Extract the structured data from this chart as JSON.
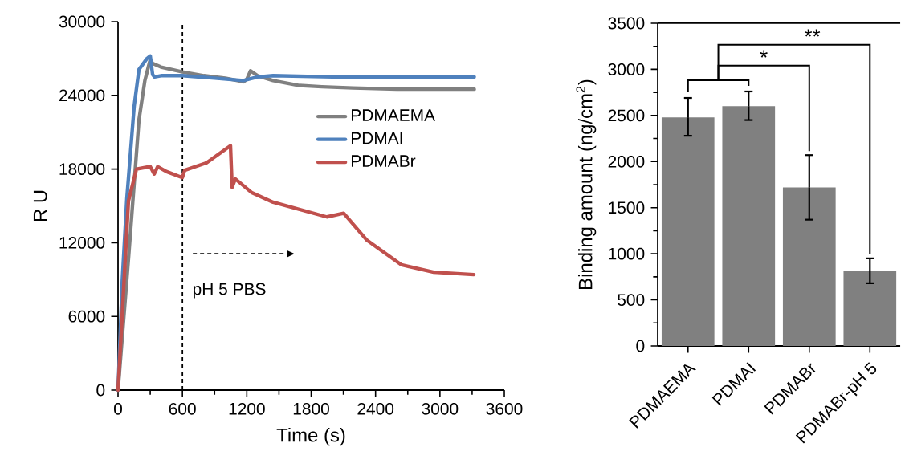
{
  "chart_data": [
    {
      "type": "line",
      "xlabel": "Time (s)",
      "ylabel": "R U",
      "xlim": [
        0,
        3600
      ],
      "xticks": [
        0,
        600,
        1200,
        1800,
        2400,
        3000,
        3600
      ],
      "ylim": [
        0,
        30000
      ],
      "yticks": [
        0,
        6000,
        12000,
        18000,
        24000,
        30000
      ],
      "legend": "right",
      "ref_lines": [
        {
          "axis": "x",
          "value": 600,
          "color": "#000000",
          "line_style": "dashed"
        }
      ],
      "annotations": [
        "pH 5 PBS"
      ],
      "series": [
        {
          "name": "PDMAEMA",
          "color": "#808080",
          "x": [
            0,
            100,
            195,
            250,
            300,
            322,
            400,
            600,
            800,
            1000,
            1168,
            1200,
            1235,
            1300,
            1445,
            1690,
            1900,
            2190,
            2600,
            3000,
            3320
          ],
          "values": [
            0,
            11000,
            22000,
            25200,
            26900,
            26600,
            26300,
            25900,
            25600,
            25400,
            25100,
            25300,
            26000,
            25600,
            25200,
            24800,
            24700,
            24600,
            24500,
            24500,
            24500
          ]
        },
        {
          "name": "PDMAI",
          "color": "#4f81bd",
          "x": [
            0,
            40,
            82,
            150,
            195,
            270,
            300,
            322,
            340,
            400,
            600,
            900,
            1168,
            1300,
            1445,
            2000,
            2600,
            3320
          ],
          "values": [
            0,
            9000,
            15600,
            23100,
            26100,
            27000,
            27200,
            25700,
            25500,
            25600,
            25600,
            25400,
            25200,
            25500,
            25600,
            25500,
            25500,
            25500
          ]
        },
        {
          "name": "PDMABr",
          "color": "#c0504d",
          "x": [
            0,
            97,
            172,
            300,
            337,
            370,
            449,
            599,
            621,
            823,
            1048,
            1063,
            1093,
            1243,
            1445,
            1946,
            2103,
            2320,
            2642,
            2942,
            3316
          ],
          "values": [
            0,
            15400,
            18000,
            18200,
            17600,
            18200,
            17800,
            17300,
            17900,
            18500,
            19900,
            16500,
            17200,
            16100,
            15300,
            14100,
            14400,
            12200,
            10200,
            9600,
            9400
          ]
        }
      ]
    },
    {
      "type": "bar",
      "ylabel": "Binding amount (ng/cm$^{2}$)",
      "categories": [
        "PDMAEMA",
        "PDMAI",
        "PDMABr",
        "PDMABr-pH 5"
      ],
      "values": [
        2480,
        2600,
        1720,
        810
      ],
      "color": "#808080",
      "errors": [
        [
          2280,
          2690
        ],
        [
          2450,
          2760
        ],
        [
          1370,
          2070
        ],
        [
          680,
          950
        ]
      ],
      "ylim": [
        0,
        3500
      ],
      "yticks": [
        0,
        500,
        1000,
        1500,
        2000,
        2500,
        3000,
        3500
      ],
      "annotations": [
        "*",
        "**"
      ]
    }
  ]
}
